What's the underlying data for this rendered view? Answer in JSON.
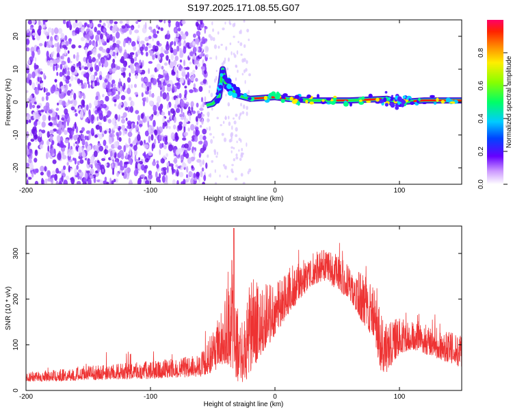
{
  "title": "S197.2025.171.08.55.G07",
  "chart_data": [
    {
      "type": "heatmap",
      "xlabel": "Height of straight line (km)",
      "ylabel": "Frequency (Hz)",
      "xlim": [
        -200,
        150
      ],
      "ylim": [
        -25,
        25
      ],
      "xticks": [
        -200,
        -100,
        0,
        100
      ],
      "yticks": [
        -20,
        -10,
        0,
        10,
        20
      ],
      "colorbar": {
        "label": "Normalized spectral amplitude",
        "range": [
          0,
          1
        ],
        "ticks": [
          "0.0",
          "0.2",
          "0.4",
          "0.6",
          "0.8"
        ]
      },
      "noise_region_km": [
        -200,
        -55
      ],
      "ridge_freq_hz": [
        [
          -55,
          -1.0
        ],
        [
          -50,
          -0.5
        ],
        [
          -45,
          1.5
        ],
        [
          -42,
          10.0
        ],
        [
          -40,
          6.0
        ],
        [
          -35,
          4.0
        ],
        [
          -30,
          2.0
        ],
        [
          -20,
          1.0
        ],
        [
          0,
          1.5
        ],
        [
          10,
          1.0
        ],
        [
          30,
          0.5
        ],
        [
          60,
          0.5
        ],
        [
          90,
          1.0
        ],
        [
          100,
          0.0
        ],
        [
          120,
          0.5
        ],
        [
          150,
          0.5
        ]
      ]
    },
    {
      "type": "line",
      "xlabel": "Height of straight line (km)",
      "ylabel": "SNR (10 * v/v)",
      "xlim": [
        -200,
        150
      ],
      "ylim": [
        0,
        360
      ],
      "xticks": [
        -200,
        -100,
        0,
        100
      ],
      "yticks": [
        0,
        100,
        200,
        300
      ],
      "color": "#ee3333",
      "envelope": [
        [
          -200,
          20,
          40
        ],
        [
          -180,
          20,
          45
        ],
        [
          -150,
          22,
          55
        ],
        [
          -120,
          25,
          60
        ],
        [
          -100,
          25,
          65
        ],
        [
          -80,
          28,
          70
        ],
        [
          -60,
          30,
          80
        ],
        [
          -50,
          40,
          130
        ],
        [
          -40,
          60,
          200
        ],
        [
          -35,
          50,
          300
        ],
        [
          -30,
          20,
          180
        ],
        [
          -25,
          10,
          150
        ],
        [
          -20,
          40,
          250
        ],
        [
          -10,
          80,
          230
        ],
        [
          0,
          120,
          240
        ],
        [
          10,
          160,
          260
        ],
        [
          20,
          200,
          280
        ],
        [
          30,
          230,
          300
        ],
        [
          40,
          240,
          310
        ],
        [
          50,
          220,
          300
        ],
        [
          60,
          200,
          270
        ],
        [
          70,
          150,
          260
        ],
        [
          80,
          110,
          220
        ],
        [
          85,
          40,
          170
        ],
        [
          90,
          40,
          150
        ],
        [
          100,
          80,
          160
        ],
        [
          110,
          90,
          150
        ],
        [
          130,
          70,
          140
        ],
        [
          150,
          50,
          120
        ]
      ]
    }
  ]
}
